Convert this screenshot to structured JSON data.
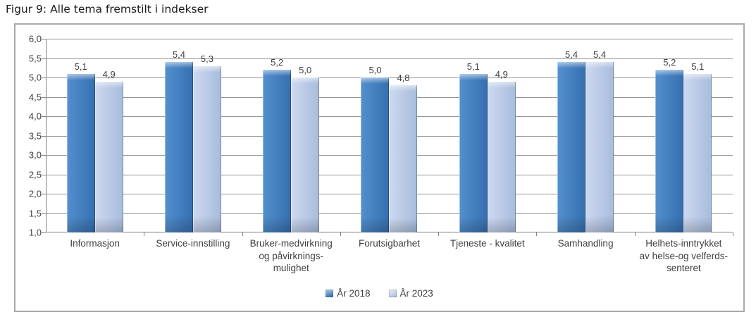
{
  "page": {
    "title": "Figur 9: Alle tema fremstilt i indekser"
  },
  "colors": {
    "series_2018": "#3E7EC1",
    "series_2023": "#BFCEEA",
    "gridline": "#949494",
    "axis": "#808080",
    "frame_border": "#A9A9A9",
    "text": "#404040"
  },
  "chart_data": {
    "type": "bar",
    "title": "Figur 9: Alle tema fremstilt i indekser",
    "xlabel": "",
    "ylabel": "",
    "grid": true,
    "legend_position": "bottom",
    "ylim": [
      1.0,
      6.0
    ],
    "ytick_step": 0.5,
    "ytick_labels": [
      "6,0",
      "5,5",
      "5,0",
      "4,5",
      "4,0",
      "3,5",
      "3,0",
      "2,5",
      "2,0",
      "1,5",
      "1,0"
    ],
    "categories": [
      "Informasjon",
      "Service-innstilling",
      "Bruker-medvirkning\nog påvirknings-\nmulighet",
      "Forutsigbarhet",
      "Tjeneste - kvalitet",
      "Samhandling",
      "Helhets-inntrykket\nav helse-og velferds-\nsenteret"
    ],
    "series": [
      {
        "name": "År 2018",
        "values": [
          5.1,
          5.4,
          5.2,
          5.0,
          5.1,
          5.4,
          5.2
        ],
        "labels": [
          "5,1",
          "5,4",
          "5,2",
          "5,0",
          "5,1",
          "5,4",
          "5,2"
        ],
        "color": "#3E7EC1",
        "color_left": "#5390CE",
        "color_right": "#366FB0"
      },
      {
        "name": "År 2023",
        "values": [
          4.9,
          5.3,
          5.0,
          4.8,
          4.9,
          5.4,
          5.1
        ],
        "labels": [
          "4,9",
          "5,3",
          "5,0",
          "4,8",
          "4,9",
          "5,4",
          "5,1"
        ],
        "color": "#BFCEEA",
        "color_left": "#CDD9F0",
        "color_right": "#A8BCDD"
      }
    ]
  }
}
